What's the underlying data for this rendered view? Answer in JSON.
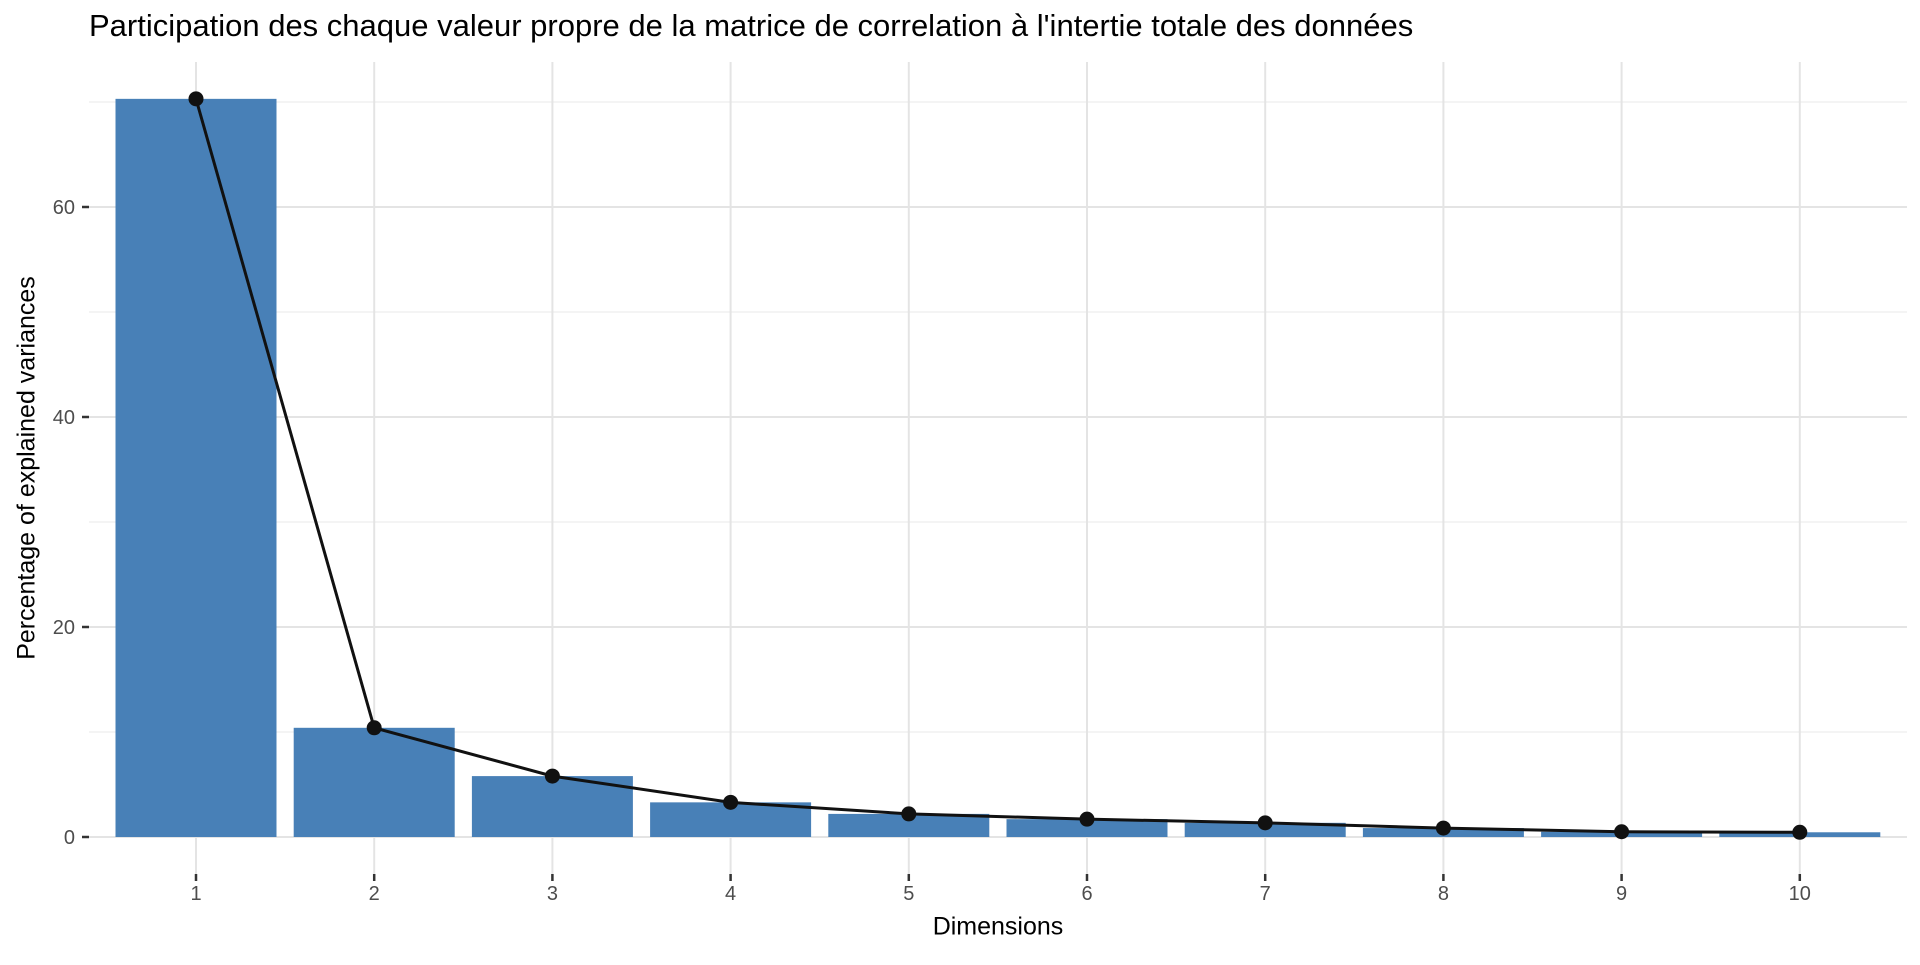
{
  "page": {
    "background": "#FFFFFF"
  },
  "chart_data": {
    "type": "bar",
    "overlay": "line-with-points",
    "title": "Participation des chaque valeur propre de la matrice de correlation à l'intertie totale des données",
    "xlabel": "Dimensions",
    "ylabel": "Percentage of explained variances",
    "categories": [
      "1",
      "2",
      "3",
      "4",
      "5",
      "6",
      "7",
      "8",
      "9",
      "10"
    ],
    "values": [
      70.3,
      10.4,
      5.8,
      3.3,
      2.2,
      1.7,
      1.35,
      0.85,
      0.5,
      0.45
    ],
    "yticks": [
      0,
      20,
      40,
      60
    ],
    "yticks_minor": [
      10,
      30,
      50,
      70
    ],
    "ylim": [
      0,
      73.5
    ],
    "grid": true,
    "legend": "none",
    "colors": {
      "bar": "#4880B7",
      "line": "#111111",
      "point": "#111111",
      "grid_major": "#E4E4E4",
      "grid_minor": "#F0F0F0",
      "tick_text": "#4D4D4D",
      "tick_mark": "#333333",
      "title_text": "#000000"
    }
  }
}
